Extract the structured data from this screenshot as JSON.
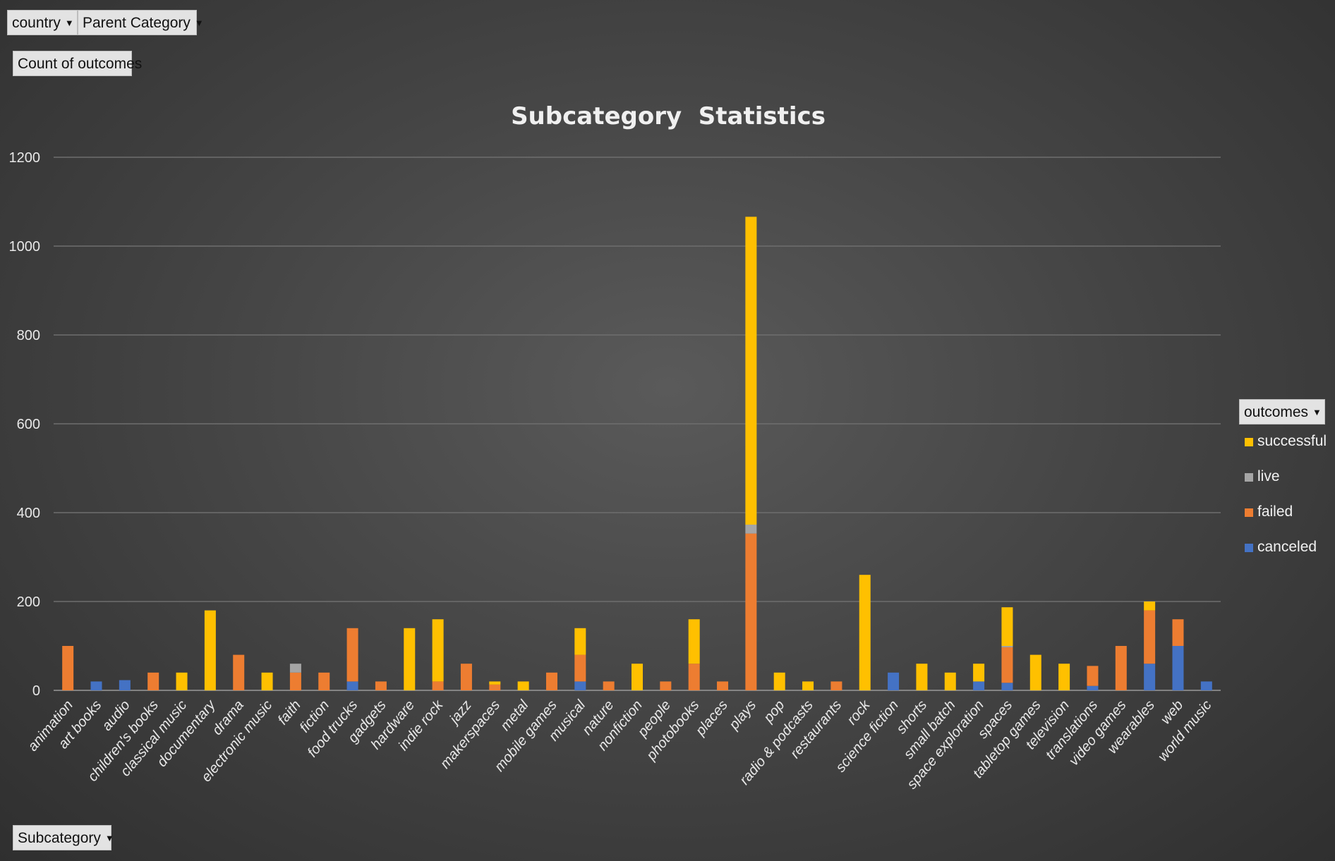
{
  "filters": {
    "country_label": "country",
    "parent_category_label": "Parent Category",
    "values_label": "Count of outcomes",
    "axis_field_label": "Subcategory",
    "legend_field_label": "outcomes"
  },
  "colors": {
    "successful": "#FFC000",
    "live": "#A5A5A5",
    "failed": "#ED7D31",
    "canceled": "#4472C4",
    "gridline": "#6e6e6e",
    "text": "#e8e8e8"
  },
  "chart_data": {
    "type": "bar",
    "stacked": true,
    "title": "Subcategory  Statistics",
    "xlabel": "",
    "ylabel": "",
    "ylim": [
      0,
      1200
    ],
    "yticks": [
      0,
      200,
      400,
      600,
      800,
      1000,
      1200
    ],
    "grid": true,
    "legend_position": "right",
    "categories": [
      "animation",
      "art books",
      "audio",
      "children's books",
      "classical music",
      "documentary",
      "drama",
      "electronic music",
      "faith",
      "fiction",
      "food trucks",
      "gadgets",
      "hardware",
      "indie rock",
      "jazz",
      "makerspaces",
      "metal",
      "mobile games",
      "musical",
      "nature",
      "nonfiction",
      "people",
      "photobooks",
      "places",
      "plays",
      "pop",
      "radio & podcasts",
      "restaurants",
      "rock",
      "science fiction",
      "shorts",
      "small batch",
      "space exploration",
      "spaces",
      "tabletop games",
      "television",
      "translations",
      "video games",
      "wearables",
      "web",
      "world music"
    ],
    "series": [
      {
        "name": "canceled",
        "values": [
          0,
          20,
          23,
          0,
          0,
          0,
          0,
          0,
          0,
          0,
          20,
          0,
          0,
          0,
          0,
          0,
          0,
          0,
          20,
          0,
          0,
          0,
          0,
          0,
          0,
          0,
          0,
          0,
          0,
          40,
          0,
          0,
          20,
          17,
          0,
          0,
          10,
          0,
          60,
          100,
          20
        ]
      },
      {
        "name": "failed",
        "values": [
          100,
          0,
          0,
          40,
          0,
          0,
          80,
          0,
          40,
          40,
          120,
          20,
          0,
          20,
          60,
          13,
          0,
          40,
          60,
          20,
          0,
          20,
          60,
          20,
          353,
          0,
          0,
          20,
          0,
          0,
          0,
          0,
          0,
          80,
          0,
          0,
          45,
          100,
          120,
          60,
          0
        ]
      },
      {
        "name": "live",
        "values": [
          0,
          0,
          0,
          0,
          0,
          0,
          0,
          0,
          20,
          0,
          0,
          0,
          0,
          0,
          0,
          0,
          0,
          0,
          0,
          0,
          0,
          0,
          0,
          0,
          20,
          0,
          0,
          0,
          0,
          0,
          0,
          0,
          0,
          3,
          0,
          0,
          0,
          0,
          0,
          0,
          0
        ]
      },
      {
        "name": "successful",
        "values": [
          0,
          0,
          0,
          0,
          40,
          180,
          0,
          40,
          0,
          0,
          0,
          0,
          140,
          140,
          0,
          7,
          20,
          0,
          60,
          0,
          60,
          0,
          100,
          0,
          693,
          40,
          20,
          0,
          260,
          0,
          60,
          40,
          40,
          87,
          80,
          60,
          0,
          0,
          20,
          0,
          0
        ]
      }
    ]
  }
}
